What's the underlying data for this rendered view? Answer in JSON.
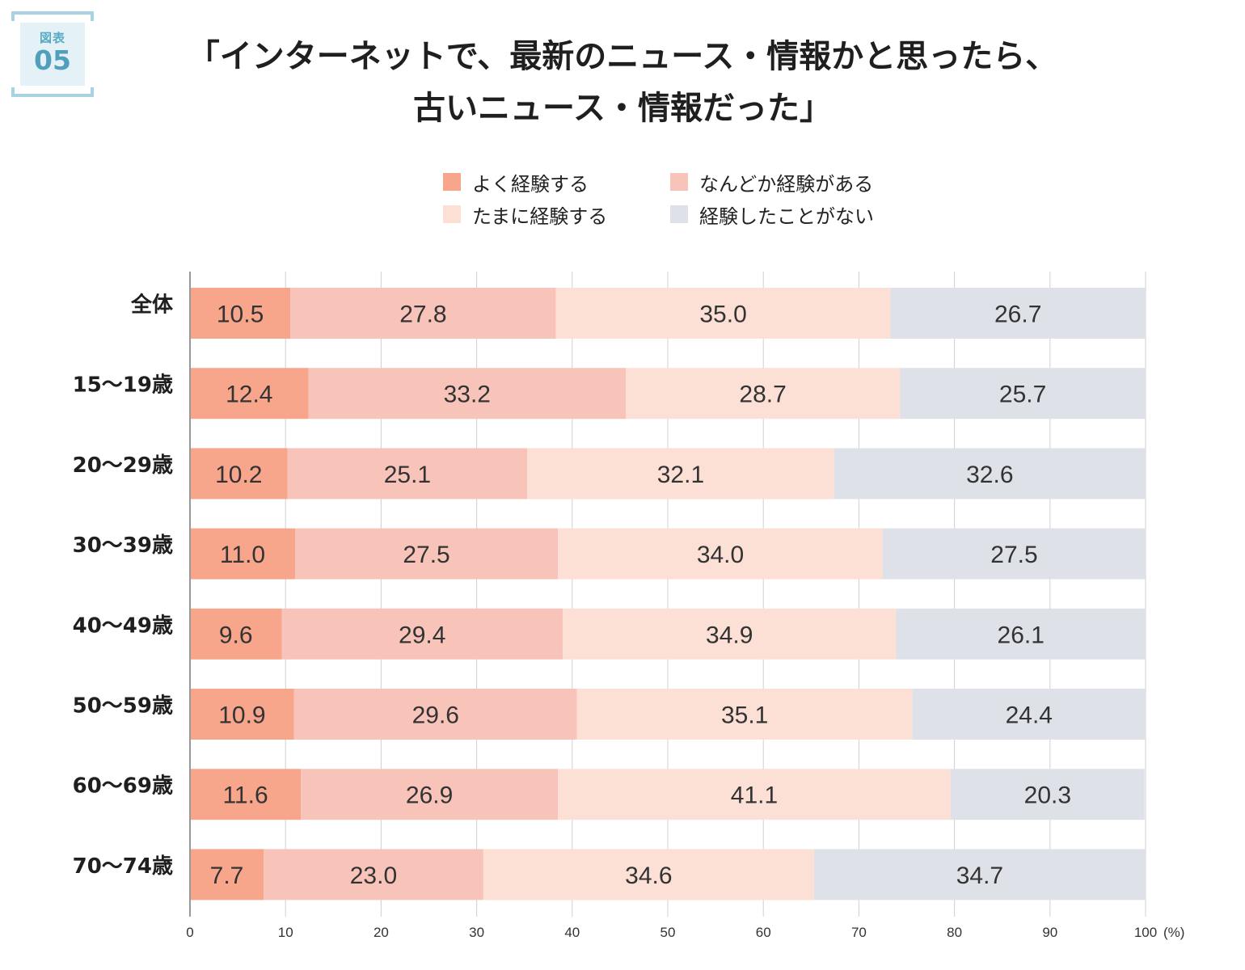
{
  "badge": {
    "label": "図表",
    "number": "05"
  },
  "title": {
    "line1": "「インターネットで、最新のニュース・情報かと思ったら、",
    "line2": "古いニュース・情報だった」"
  },
  "colors": {
    "often": "#f7a68c",
    "sometimes_have": "#f8c4ba",
    "occasionally": "#fce0d6",
    "never": "#dee2e8",
    "badge_accent": "#4f9fbd",
    "grid": "#d0d0d0",
    "axis": "#999999"
  },
  "chart_data": {
    "type": "bar",
    "orientation": "horizontal",
    "stacked": true,
    "categories": [
      "全体",
      "15〜19歳",
      "20〜29歳",
      "30〜39歳",
      "40〜49歳",
      "50〜59歳",
      "60〜69歳",
      "70〜74歳"
    ],
    "series": [
      {
        "name": "よく経験する",
        "values": [
          10.5,
          12.4,
          10.2,
          11.0,
          9.6,
          10.9,
          11.6,
          7.7
        ]
      },
      {
        "name": "なんどか経験がある",
        "values": [
          27.8,
          33.2,
          25.1,
          27.5,
          29.4,
          29.6,
          26.9,
          23.0
        ]
      },
      {
        "name": "たまに経験する",
        "values": [
          35.0,
          28.7,
          32.1,
          34.0,
          34.9,
          35.1,
          41.1,
          34.6
        ]
      },
      {
        "name": "経験したことがない",
        "values": [
          26.7,
          25.7,
          32.6,
          27.5,
          26.1,
          24.4,
          20.3,
          34.7
        ]
      }
    ],
    "value_labels": [
      [
        "10.5",
        "27.8",
        "35.0",
        "26.7"
      ],
      [
        "12.4",
        "33.2",
        "28.7",
        "25.7"
      ],
      [
        "10.2",
        "25.1",
        "32.1",
        "32.6"
      ],
      [
        "11.0",
        "27.5",
        "34.0",
        "27.5"
      ],
      [
        "9.6",
        "29.4",
        "34.9",
        "26.1"
      ],
      [
        "10.9",
        "29.6",
        "35.1",
        "24.4"
      ],
      [
        "11.6",
        "26.9",
        "41.1",
        "20.3"
      ],
      [
        "7.7",
        "23.0",
        "34.6",
        "34.7"
      ]
    ],
    "xlim": [
      0,
      100
    ],
    "xticks": [
      0,
      10,
      20,
      30,
      40,
      50,
      60,
      70,
      80,
      90,
      100
    ],
    "xtick_labels": [
      "0",
      "10",
      "20",
      "30",
      "40",
      "50",
      "60",
      "70",
      "80",
      "90",
      "100"
    ],
    "x_unit": "(%)",
    "grid": true,
    "legend_position": "top"
  }
}
